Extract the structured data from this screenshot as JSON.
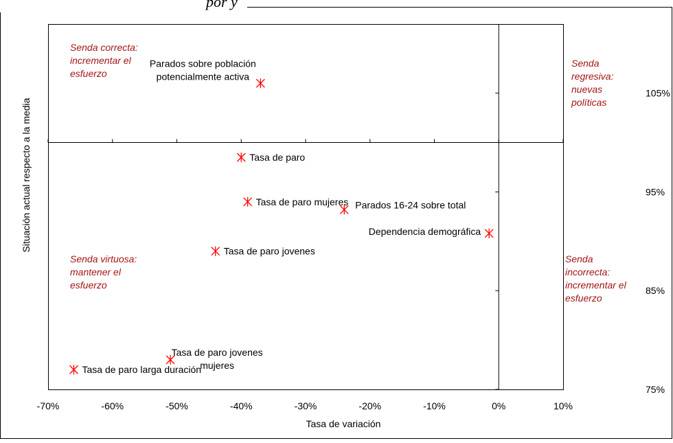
{
  "title": "por y",
  "chart_data": {
    "type": "scatter",
    "title": "por y",
    "xlabel": "Tasa de variación",
    "ylabel": "Situación actual respecto a la media",
    "xlim": [
      -0.7,
      0.1
    ],
    "ylim": [
      0.75,
      1.12
    ],
    "x_cross": 0,
    "y_cross": 1.0,
    "x_ticks": [
      -0.7,
      -0.6,
      -0.5,
      -0.4,
      -0.3,
      -0.2,
      -0.1,
      0.0,
      0.1
    ],
    "x_tick_labels": [
      "-70%",
      "-60%",
      "-50%",
      "-40%",
      "-30%",
      "-20%",
      "-10%",
      "0%",
      "10%"
    ],
    "y_ticks": [
      0.75,
      0.85,
      0.95,
      1.05
    ],
    "y_tick_labels": [
      "75%",
      "85%",
      "95%",
      "105%"
    ],
    "marker_color": "#ff0000",
    "quadrant_color": "#a31515",
    "points": [
      {
        "label": "Parados sobre población potencialmente activa",
        "label_lines": [
          "Parados sobre población",
          "potencialmente activa"
        ],
        "x": -0.37,
        "y": 1.06
      },
      {
        "label": "Tasa de paro",
        "label_lines": [
          "Tasa de paro"
        ],
        "x": -0.4,
        "y": 0.985
      },
      {
        "label": "Tasa de paro mujeres",
        "label_lines": [
          "Tasa de paro mujeres"
        ],
        "x": -0.39,
        "y": 0.94
      },
      {
        "label": "Parados 16-24 sobre total",
        "label_lines": [
          "Parados 16-24 sobre total"
        ],
        "x": -0.24,
        "y": 0.932
      },
      {
        "label": "Dependencia demográfica",
        "label_lines": [
          "Dependencia demográfica"
        ],
        "x": -0.015,
        "y": 0.908
      },
      {
        "label": "Tasa de paro jovenes",
        "label_lines": [
          "Tasa de paro jovenes"
        ],
        "x": -0.44,
        "y": 0.89
      },
      {
        "label": "Tasa de paro jovenes mujeres",
        "label_lines": [
          "Tasa de paro jovenes",
          "mujeres"
        ],
        "x": -0.51,
        "y": 0.78
      },
      {
        "label": "Tasa de paro larga duración",
        "label_lines": [
          "Tasa de paro larga duración"
        ],
        "x": -0.66,
        "y": 0.77
      }
    ],
    "quadrants": [
      {
        "name": "top-left",
        "lines": [
          "Senda correcta:",
          "incrementar el",
          "esfuerzo"
        ]
      },
      {
        "name": "top-right",
        "lines": [
          "Senda",
          "regresiva:",
          "nuevas",
          "políticas"
        ]
      },
      {
        "name": "bottom-left",
        "lines": [
          "Senda virtuosa:",
          "mantener el",
          "esfuerzo"
        ]
      },
      {
        "name": "bottom-right",
        "lines": [
          "Senda",
          "incorrecta:",
          "incrementar el",
          "esfuerzo"
        ]
      }
    ]
  }
}
